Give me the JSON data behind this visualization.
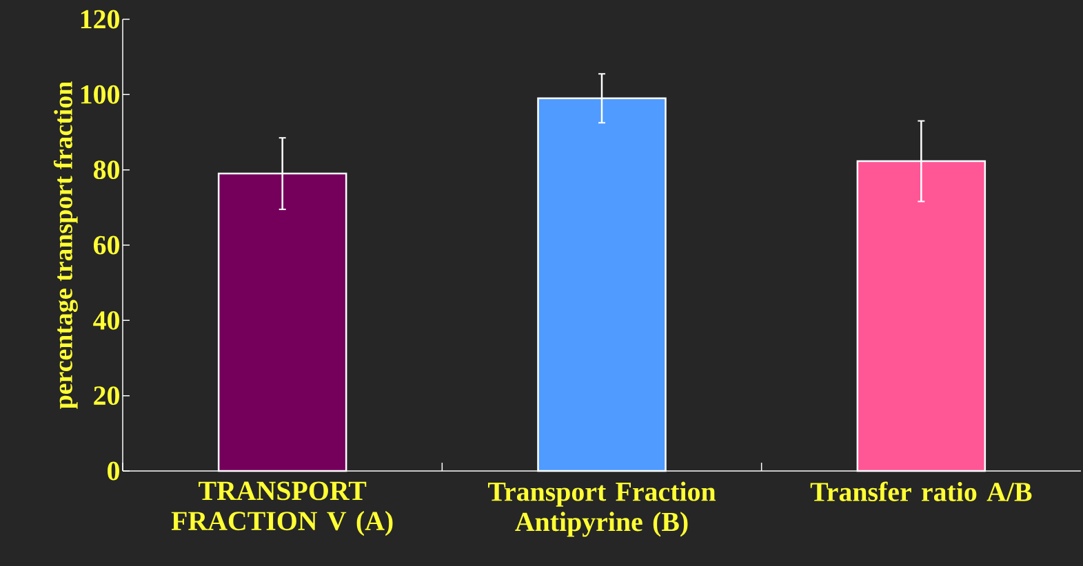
{
  "chart_data": {
    "type": "bar",
    "ylabel": "percentage transport fraction",
    "categories": [
      "TRANSPORT FRACTION V (A)",
      "Transport Fraction Antipyrine (B)",
      "Transfer ratio A/B"
    ],
    "values": [
      79,
      99,
      82.3
    ],
    "colors": [
      "#75005c",
      "#4f9bff",
      "#ff5696"
    ],
    "errors": [
      9.5,
      6.5,
      10.7
    ],
    "ylim": [
      0,
      120
    ],
    "yticks": [
      0,
      20,
      40,
      60,
      80,
      100,
      120
    ]
  }
}
